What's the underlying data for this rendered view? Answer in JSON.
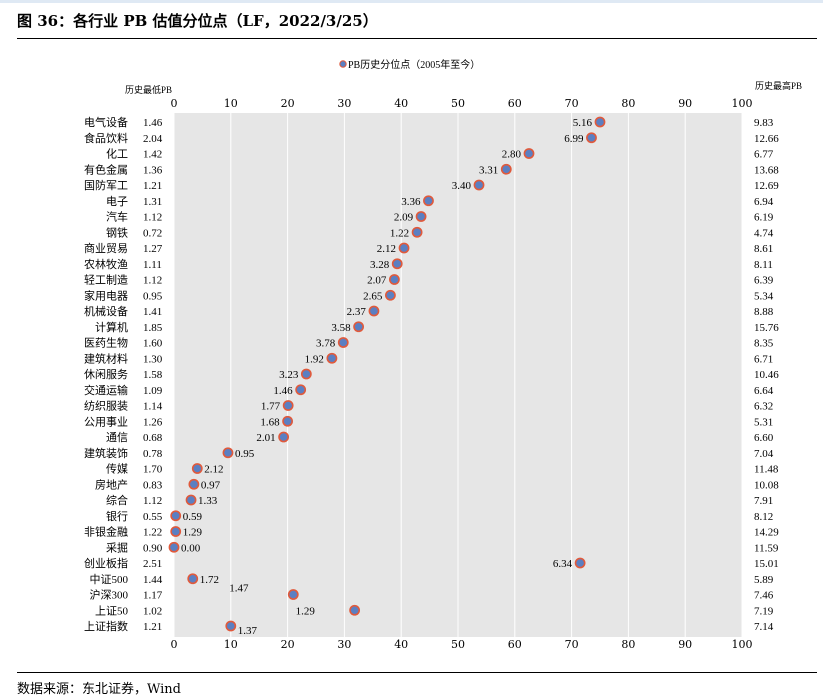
{
  "figure_title": "图 36：各行业 PB 估值分位点（LF，2022/3/25）",
  "source": "数据来源：东北证券，Wind",
  "chart_data": {
    "type": "scatter",
    "legend": "PB历史分位点（2005年至今）",
    "legend_position": "top",
    "left_header": "历史最低PB",
    "right_header": "历史最高PB",
    "xlim": [
      0,
      100
    ],
    "xticks": [
      0,
      10,
      20,
      30,
      40,
      50,
      60,
      70,
      80,
      90,
      100
    ],
    "grid": true,
    "marker_color": "#5b7fc2",
    "marker_edge_color": "#e05a3c",
    "plot_background": "#e6e6e6",
    "rows": [
      {
        "name": "电气设备",
        "min_pb": "1.46",
        "max_pb": "9.83",
        "pb": "5.16",
        "pct": 75
      },
      {
        "name": "食品饮料",
        "min_pb": "2.04",
        "max_pb": "12.66",
        "pb": "6.99",
        "pct": 73.5
      },
      {
        "name": "化工",
        "min_pb": "1.42",
        "max_pb": "6.77",
        "pb": "2.80",
        "pct": 62.5
      },
      {
        "name": "有色金属",
        "min_pb": "1.36",
        "max_pb": "13.68",
        "pb": "3.31",
        "pct": 58.5
      },
      {
        "name": "国防军工",
        "min_pb": "1.21",
        "max_pb": "12.69",
        "pb": "3.40",
        "pct": 53.7
      },
      {
        "name": "电子",
        "min_pb": "1.31",
        "max_pb": "6.94",
        "pb": "3.36",
        "pct": 44.8
      },
      {
        "name": "汽车",
        "min_pb": "1.12",
        "max_pb": "6.19",
        "pb": "2.09",
        "pct": 43.5
      },
      {
        "name": "钢铁",
        "min_pb": "0.72",
        "max_pb": "4.74",
        "pb": "1.22",
        "pct": 42.8
      },
      {
        "name": "商业贸易",
        "min_pb": "1.27",
        "max_pb": "8.61",
        "pb": "2.12",
        "pct": 40.5
      },
      {
        "name": "农林牧渔",
        "min_pb": "1.11",
        "max_pb": "8.11",
        "pb": "3.28",
        "pct": 39.3
      },
      {
        "name": "轻工制造",
        "min_pb": "1.12",
        "max_pb": "6.39",
        "pb": "2.07",
        "pct": 38.8
      },
      {
        "name": "家用电器",
        "min_pb": "0.95",
        "max_pb": "5.34",
        "pb": "2.65",
        "pct": 38.1
      },
      {
        "name": "机械设备",
        "min_pb": "1.41",
        "max_pb": "8.88",
        "pb": "2.37",
        "pct": 35.2
      },
      {
        "name": "计算机",
        "min_pb": "1.85",
        "max_pb": "15.76",
        "pb": "3.58",
        "pct": 32.5
      },
      {
        "name": "医药生物",
        "min_pb": "1.60",
        "max_pb": "8.35",
        "pb": "3.78",
        "pct": 29.8
      },
      {
        "name": "建筑材料",
        "min_pb": "1.30",
        "max_pb": "6.71",
        "pb": "1.92",
        "pct": 27.8
      },
      {
        "name": "休闲服务",
        "min_pb": "1.58",
        "max_pb": "10.46",
        "pb": "3.23",
        "pct": 23.3
      },
      {
        "name": "交通运输",
        "min_pb": "1.09",
        "max_pb": "6.64",
        "pb": "1.46",
        "pct": 22.3
      },
      {
        "name": "纺织服装",
        "min_pb": "1.14",
        "max_pb": "6.32",
        "pb": "1.77",
        "pct": 20.1
      },
      {
        "name": "公用事业",
        "min_pb": "1.26",
        "max_pb": "5.31",
        "pb": "1.68",
        "pct": 20.0
      },
      {
        "name": "通信",
        "min_pb": "0.68",
        "max_pb": "6.60",
        "pb": "2.01",
        "pct": 19.3
      },
      {
        "name": "建筑装饰",
        "min_pb": "0.78",
        "max_pb": "7.04",
        "pb": "0.95",
        "pct": 9.5
      },
      {
        "name": "传媒",
        "min_pb": "1.70",
        "max_pb": "11.48",
        "pb": "2.12",
        "pct": 4.1
      },
      {
        "name": "房地产",
        "min_pb": "0.83",
        "max_pb": "10.08",
        "pb": "0.97",
        "pct": 3.5
      },
      {
        "name": "综合",
        "min_pb": "1.12",
        "max_pb": "7.91",
        "pb": "1.33",
        "pct": 3.0
      },
      {
        "name": "银行",
        "min_pb": "0.55",
        "max_pb": "8.12",
        "pb": "0.59",
        "pct": 0.3
      },
      {
        "name": "非银金融",
        "min_pb": "1.22",
        "max_pb": "14.29",
        "pb": "1.29",
        "pct": 0.3
      },
      {
        "name": "采掘",
        "min_pb": "0.90",
        "max_pb": "11.59",
        "pb": "0.00",
        "pct": 0.0
      },
      {
        "name": "创业板指",
        "min_pb": "2.51",
        "max_pb": "15.01",
        "pb": "6.34",
        "pct": 71.5
      },
      {
        "name": "中证500",
        "min_pb": "1.44",
        "max_pb": "5.89",
        "pb": "1.72",
        "pct": 3.3
      },
      {
        "name": "沪深300",
        "min_pb": "1.17",
        "max_pb": "7.46",
        "pb": "1.47",
        "pct": 21.0
      },
      {
        "name": "上证50",
        "min_pb": "1.02",
        "max_pb": "7.19",
        "pb": "1.29",
        "pct": 31.8
      },
      {
        "name": "上证指数",
        "min_pb": "1.21",
        "max_pb": "7.14",
        "pb": "1.37",
        "pct": 10.0
      }
    ]
  }
}
